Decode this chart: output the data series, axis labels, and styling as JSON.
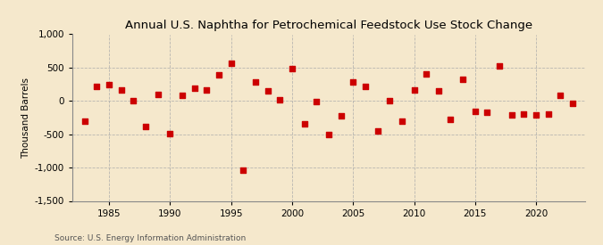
{
  "title": "Annual U.S. Naphtha for Petrochemical Feedstock Use Stock Change",
  "ylabel": "Thousand Barrels",
  "source": "Source: U.S. Energy Information Administration",
  "background_color": "#f5e8cc",
  "plot_background_color": "#f5e8cc",
  "marker_color": "#cc0000",
  "marker_size": 18,
  "years": [
    1983,
    1984,
    1985,
    1986,
    1987,
    1988,
    1989,
    1990,
    1991,
    1992,
    1993,
    1994,
    1995,
    1996,
    1997,
    1998,
    1999,
    2000,
    2001,
    2002,
    2003,
    2004,
    2005,
    2006,
    2007,
    2008,
    2009,
    2010,
    2011,
    2012,
    2013,
    2014,
    2015,
    2016,
    2017,
    2018,
    2019,
    2020,
    2021,
    2022,
    2023
  ],
  "values": [
    -300,
    220,
    250,
    160,
    10,
    -380,
    100,
    -490,
    90,
    190,
    165,
    390,
    560,
    -1040,
    280,
    155,
    20,
    490,
    -350,
    -10,
    -510,
    -220,
    280,
    220,
    -450,
    10,
    -300,
    170,
    400,
    150,
    -280,
    330,
    -150,
    -170,
    530,
    -210,
    -200,
    -205,
    -200,
    90,
    -30
  ],
  "ylim": [
    -1500,
    1000
  ],
  "yticks": [
    -1500,
    -1000,
    -500,
    0,
    500,
    1000
  ],
  "xticks": [
    1985,
    1990,
    1995,
    2000,
    2005,
    2010,
    2015,
    2020
  ],
  "xlim": [
    1982,
    2024
  ],
  "grid_color": "#aaaaaa",
  "grid_style": "--",
  "grid_alpha": 0.8,
  "title_fontsize": 9.5,
  "tick_fontsize": 7.5,
  "ylabel_fontsize": 7.5,
  "source_fontsize": 6.5
}
